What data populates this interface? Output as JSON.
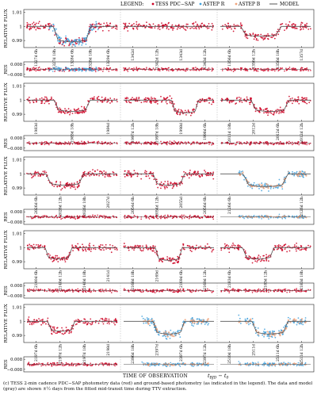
{
  "legend": {
    "title": "LEGEND:",
    "entries": [
      {
        "label": "TESS PDC−SAP",
        "color": "#cc0022",
        "marker": "dot"
      },
      {
        "label": "ASTEP R",
        "color": "#3fa0dc",
        "marker": "dot"
      },
      {
        "label": "ASTEP B",
        "color": "#f0a27a",
        "marker": "dot"
      },
      {
        "label": "MODEL",
        "color": "#555555",
        "marker": "line"
      }
    ]
  },
  "axes": {
    "flux_ylabel": "RELATIVE FLUX",
    "res_ylabel": "RES",
    "flux_ticks": [
      "1.01",
      "1",
      "0.99"
    ],
    "res_ticks": [
      "0.008",
      "−0.008"
    ],
    "xlabel": "TIME OF OBSERVATION",
    "xlabel_math": "t_BJD − t_0",
    "xlabel_math_base": "t",
    "xlabel_math_sub": "BJD",
    "xlabel_math_tail": " − t",
    "xlabel_math_sub0": "0"
  },
  "caption": "(c) TESS 2-min cadence PDC−SAP photometry data (red) and ground-based photometry (as indicated in the legend). The data and model (gray) are shown ±½ days from the fitted mid-transit time during TTV extraction.",
  "chart_data": {
    "type": "scatter",
    "flux_ylim": [
      0.985,
      1.012
    ],
    "res_ylim": [
      -0.012,
      0.012
    ],
    "rows": [
      {
        "panels": [
          {
            "ticks": [
              {
                "d": "1327d",
                "h": "6h"
              },
              {
                "d": "1327d",
                "h": "18h"
              },
              {
                "d": "1328d",
                "h": "6h"
              },
              {
                "d": "1328d",
                "h": "18h"
              },
              {
                "d": "1329d",
                "h": "6h"
              }
            ],
            "depth": 0.011,
            "width": 0.42,
            "center": 0.5,
            "data": [
              "tess",
              "astep_r"
            ]
          },
          {
            "ticks": [
              {
                "d": "1342d",
                "h": ""
              },
              {
                "d": "1342d",
                "h": "12h"
              },
              {
                "d": "1343d",
                "h": ""
              },
              {
                "d": "1343d",
                "h": "12h"
              }
            ],
            "depth": 0.0,
            "width": 0.0,
            "center": 0.5,
            "data": [
              "tess"
            ]
          },
          {
            "ticks": [
              {
                "d": "1356d",
                "h": "6h"
              },
              {
                "d": "1356d",
                "h": "12h"
              },
              {
                "d": "1356d",
                "h": "18h"
              },
              {
                "d": "1357d",
                "h": ""
              }
            ],
            "depth": 0.007,
            "width": 0.45,
            "center": 0.45,
            "data": [
              "tess"
            ]
          }
        ]
      },
      {
        "panels": [
          {
            "ticks": [
              {
                "d": "1983d",
                "h": ""
              },
              {
                "d": "1983d",
                "h": "18h"
              },
              {
                "d": "1984d",
                "h": ""
              }
            ],
            "depth": 0.008,
            "width": 0.4,
            "center": 0.5,
            "data": [
              "tess"
            ]
          },
          {
            "ticks": [
              {
                "d": "1997d",
                "h": "12h"
              },
              {
                "d": "1997d",
                "h": "18h"
              },
              {
                "d": "1998d",
                "h": ""
              },
              {
                "d": "1998d",
                "h": "6h"
              }
            ],
            "depth": 0.009,
            "width": 0.3,
            "center": 0.68,
            "data": [
              "tess"
            ]
          },
          {
            "ticks": [
              {
                "d": "2011d",
                "h": "18h"
              },
              {
                "d": "2012d",
                "h": ""
              },
              {
                "d": "2012d",
                "h": "6h"
              },
              {
                "d": "2012d",
                "h": "12h"
              }
            ],
            "depth": 0.008,
            "width": 0.42,
            "center": 0.55,
            "data": [
              "tess"
            ]
          }
        ]
      },
      {
        "panels": [
          {
            "ticks": [
              {
                "d": "2026d",
                "h": "6h"
              },
              {
                "d": "2026d",
                "h": "12h"
              },
              {
                "d": "2026d",
                "h": "18h"
              },
              {
                "d": "2027d",
                "h": ""
              }
            ],
            "depth": 0.008,
            "width": 0.42,
            "center": 0.42,
            "data": [
              "tess"
            ]
          },
          {
            "ticks": [
              {
                "d": "2054d",
                "h": "6h"
              },
              {
                "d": "2054d",
                "h": "12h"
              },
              {
                "d": "2055d",
                "h": ""
              },
              {
                "d": "2056d",
                "h": "6h"
              }
            ],
            "depth": 0.008,
            "width": 0.35,
            "center": 0.5,
            "data": [
              "tess"
            ]
          },
          {
            "ticks": [
              {
                "d": "2126d",
                "h": "6h"
              },
              {
                "d": "2126d",
                "h": "12h"
              }
            ],
            "depth": 0.009,
            "width": 0.5,
            "center": 0.5,
            "data": [
              "astep_r",
              "astep_b"
            ]
          }
        ]
      },
      {
        "panels": [
          {
            "ticks": [
              {
                "d": "2140d",
                "h": "6h"
              },
              {
                "d": "2140d",
                "h": "12h"
              },
              {
                "d": "2140d",
                "h": "18h"
              },
              {
                "d": "2141d",
                "h": ""
              }
            ],
            "depth": 0.008,
            "width": 0.3,
            "center": 0.35,
            "data": [
              "tess"
            ]
          },
          {
            "ticks": [
              {
                "d": "2168d",
                "h": "18h"
              },
              {
                "d": "2169d",
                "h": ""
              },
              {
                "d": "2169d",
                "h": "6h"
              },
              {
                "d": "2169d",
                "h": "12h"
              }
            ],
            "depth": 0.009,
            "width": 0.3,
            "center": 0.5,
            "data": [
              "tess"
            ]
          },
          {
            "ticks": [
              {
                "d": "2183d",
                "h": "6h"
              },
              {
                "d": "2183d",
                "h": "12h"
              },
              {
                "d": "2183d",
                "h": "18h"
              }
            ],
            "depth": 0.008,
            "width": 0.35,
            "center": 0.42,
            "data": [
              "tess"
            ]
          }
        ]
      },
      {
        "panels": [
          {
            "ticks": [
              {
                "d": "2197d",
                "h": "6h"
              },
              {
                "d": "2197d",
                "h": "12h"
              },
              {
                "d": "2197d",
                "h": "18h"
              },
              {
                "d": "2198d",
                "h": ""
              }
            ],
            "depth": 0.007,
            "width": 0.3,
            "center": 0.38,
            "data": [
              "tess"
            ]
          },
          {
            "ticks": [
              {
                "d": "2396d",
                "h": "18h"
              },
              {
                "d": "2397d",
                "h": ""
              },
              {
                "d": "2397d",
                "h": "6h"
              },
              {
                "d": "2397d",
                "h": "12h"
              }
            ],
            "depth": 0.009,
            "width": 0.35,
            "center": 0.5,
            "data": [
              "astep_r",
              "astep_b"
            ]
          },
          {
            "ticks": [
              {
                "d": "2510d",
                "h": "18h"
              },
              {
                "d": "2511d",
                "h": ""
              },
              {
                "d": "2511d",
                "h": "6h"
              },
              {
                "d": "2511d",
                "h": "12h"
              }
            ],
            "depth": 0.009,
            "width": 0.4,
            "center": 0.55,
            "data": [
              "astep_r",
              "astep_b"
            ]
          }
        ]
      }
    ]
  }
}
